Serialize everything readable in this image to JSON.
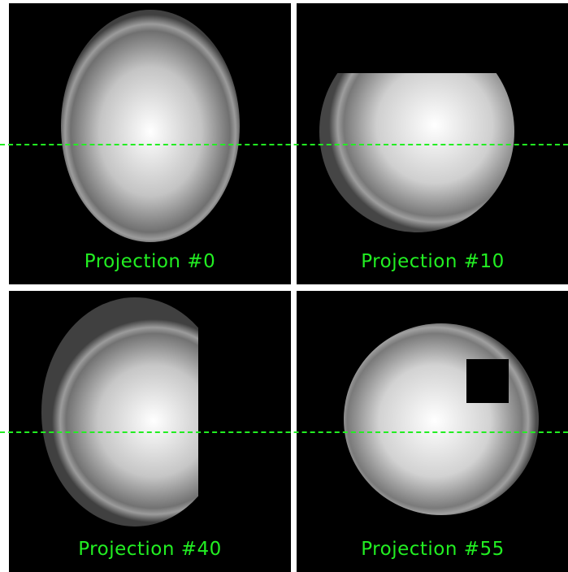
{
  "panels": [
    {
      "caption": "Projection #0"
    },
    {
      "caption": "Projection #10"
    },
    {
      "caption": "Projection #40"
    },
    {
      "caption": "Projection #55"
    }
  ],
  "colors": {
    "caption": "#22ee22",
    "guide_line": "#22ee22",
    "background": "#000000"
  }
}
